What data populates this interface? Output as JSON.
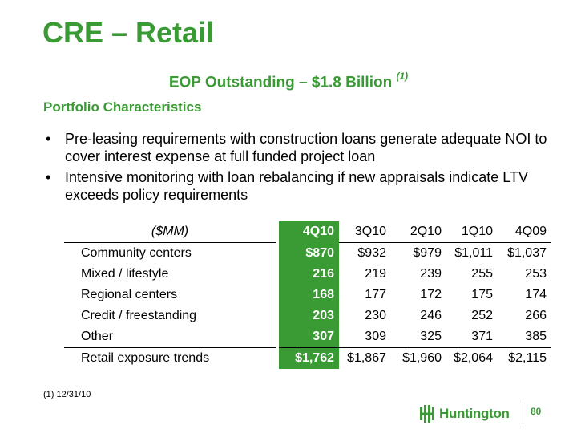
{
  "title": "CRE – Retail",
  "subtitle": {
    "text": "EOP Outstanding – $1.8 Billion",
    "note": "(1)"
  },
  "section_heading": "Portfolio Characteristics",
  "bullets": [
    "Pre-leasing requirements with construction loans generate adequate NOI to cover interest expense at full funded project loan",
    "Intensive monitoring with loan rebalancing if new appraisals indicate LTV exceeds policy requirements"
  ],
  "table": {
    "header": [
      "($MM)",
      "4Q10",
      "3Q10",
      "2Q10",
      "1Q10",
      "4Q09"
    ],
    "rows": [
      [
        "Community centers",
        "$870",
        "$932",
        "$979",
        "$1,011",
        "$1,037"
      ],
      [
        "Mixed / lifestyle",
        "216",
        "219",
        "239",
        "255",
        "253"
      ],
      [
        "Regional centers",
        "168",
        "177",
        "172",
        "175",
        "174"
      ],
      [
        "Credit / freestanding",
        "203",
        "230",
        "246",
        "252",
        "266"
      ],
      [
        "Other",
        "307",
        "309",
        "325",
        "371",
        "385"
      ],
      [
        "Retail exposure trends",
        "$1,762",
        "$1,867",
        "$1,960",
        "$2,064",
        "$2,115"
      ]
    ]
  },
  "footnote": "(1)  12/31/10",
  "logo": {
    "text": "Huntington",
    "icon": "huntington-logo-icon"
  },
  "page_number": "80",
  "colors": {
    "brand_green": "#3a9b35"
  }
}
